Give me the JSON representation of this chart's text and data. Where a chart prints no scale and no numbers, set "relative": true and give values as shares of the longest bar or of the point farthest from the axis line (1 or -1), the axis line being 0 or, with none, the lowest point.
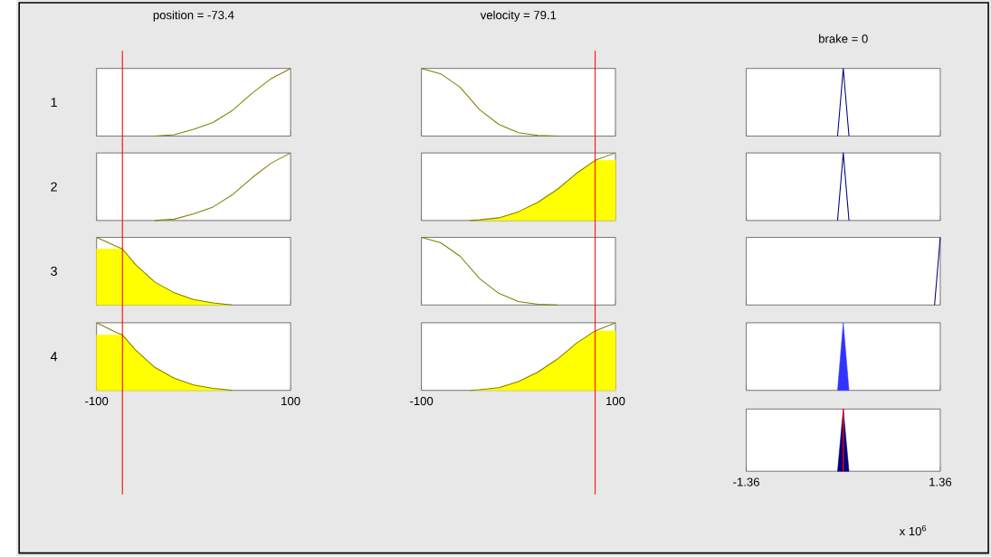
{
  "chart_data": [
    {
      "type": "line",
      "title": "position = -73.4",
      "ylabel": "1",
      "relative": true,
      "xlim": [
        -100,
        100
      ],
      "xticks": [
        -100,
        100
      ],
      "tick_labels": false,
      "ref_lines": [
        {
          "axis": "x",
          "value": -73.4,
          "color": "#ff0000"
        }
      ],
      "series": [
        {
          "color": "#808000",
          "x": [
            -40,
            -20,
            0,
            20,
            40,
            60,
            80,
            100
          ],
          "values": [
            0,
            0.02,
            0.1,
            0.2,
            0.38,
            0.63,
            0.85,
            1
          ]
        }
      ]
    },
    {
      "type": "line",
      "title": "velocity = 79.1",
      "relative": true,
      "xlim": [
        -100,
        100
      ],
      "xticks": [
        -100,
        100
      ],
      "tick_labels": false,
      "ref_lines": [
        {
          "axis": "x",
          "value": 79.1,
          "color": "#ff0000"
        }
      ],
      "series": [
        {
          "color": "#808000",
          "x": [
            -100,
            -80,
            -60,
            -40,
            -20,
            0,
            20,
            40
          ],
          "values": [
            1,
            0.92,
            0.72,
            0.39,
            0.17,
            0.05,
            0.01,
            0
          ]
        }
      ]
    },
    {
      "type": "line",
      "title": "brake = 0",
      "relative": true,
      "xlim": [
        -1.36,
        1.36
      ],
      "xticks": [
        -1.36,
        1.36
      ],
      "tick_labels": false,
      "series": [
        {
          "color": "#000080",
          "x": [
            -0.08,
            0,
            0.08
          ],
          "values": [
            0,
            1,
            0
          ]
        }
      ]
    },
    {
      "type": "line",
      "ylabel": "2",
      "relative": true,
      "xlim": [
        -100,
        100
      ],
      "xticks": [
        -100,
        100
      ],
      "tick_labels": false,
      "ref_lines": [
        {
          "axis": "x",
          "value": -73.4,
          "color": "#ff0000"
        }
      ],
      "series": [
        {
          "color": "#808000",
          "x": [
            -40,
            -20,
            0,
            20,
            40,
            60,
            80,
            100
          ],
          "values": [
            0,
            0.02,
            0.1,
            0.2,
            0.38,
            0.63,
            0.85,
            1
          ]
        }
      ]
    },
    {
      "type": "line",
      "relative": true,
      "xlim": [
        -100,
        100
      ],
      "xticks": [
        -100,
        100
      ],
      "tick_labels": false,
      "ref_lines": [
        {
          "axis": "x",
          "value": 79.1,
          "color": "#ff0000"
        }
      ],
      "series": [
        {
          "type": "area",
          "color": "#ffff00",
          "x": [
            -50,
            -40,
            -20,
            0,
            20,
            40,
            60,
            79.1,
            100
          ],
          "values": [
            0,
            0.01,
            0.04,
            0.13,
            0.27,
            0.46,
            0.7,
            0.89,
            0.89
          ]
        },
        {
          "color": "#808000",
          "x": [
            -50,
            -40,
            -20,
            0,
            20,
            40,
            60,
            79.1,
            100
          ],
          "values": [
            0,
            0.01,
            0.04,
            0.13,
            0.27,
            0.46,
            0.7,
            0.89,
            1
          ]
        }
      ]
    },
    {
      "type": "line",
      "relative": true,
      "xlim": [
        -1.36,
        1.36
      ],
      "xticks": [
        -1.36,
        1.36
      ],
      "tick_labels": false,
      "series": [
        {
          "color": "#000080",
          "x": [
            -0.08,
            0,
            0.08
          ],
          "values": [
            0,
            1,
            0
          ]
        }
      ]
    },
    {
      "type": "line",
      "ylabel": "3",
      "relative": true,
      "xlim": [
        -100,
        100
      ],
      "xticks": [
        -100,
        100
      ],
      "tick_labels": false,
      "ref_lines": [
        {
          "axis": "x",
          "value": -73.4,
          "color": "#ff0000"
        }
      ],
      "series": [
        {
          "type": "area",
          "color": "#ffff00",
          "x": [
            -100,
            -80,
            -73.4,
            -60,
            -40,
            -20,
            0,
            20,
            40
          ],
          "values": [
            0.83,
            0.83,
            0.83,
            0.6,
            0.34,
            0.18,
            0.08,
            0.03,
            0
          ]
        },
        {
          "color": "#808000",
          "x": [
            -100,
            -80,
            -73.4,
            -60,
            -40,
            -20,
            0,
            20,
            40
          ],
          "values": [
            1,
            0.87,
            0.83,
            0.6,
            0.34,
            0.18,
            0.08,
            0.03,
            0
          ]
        }
      ]
    },
    {
      "type": "line",
      "relative": true,
      "xlim": [
        -100,
        100
      ],
      "xticks": [
        -100,
        100
      ],
      "tick_labels": false,
      "ref_lines": [
        {
          "axis": "x",
          "value": 79.1,
          "color": "#ff0000"
        }
      ],
      "series": [
        {
          "color": "#808000",
          "x": [
            -100,
            -80,
            -60,
            -40,
            -20,
            0,
            20,
            40
          ],
          "values": [
            1,
            0.92,
            0.72,
            0.39,
            0.17,
            0.05,
            0.01,
            0
          ]
        }
      ]
    },
    {
      "type": "line",
      "relative": true,
      "xlim": [
        -1.36,
        1.36
      ],
      "xticks": [
        -1.36,
        1.36
      ],
      "tick_labels": false,
      "series": [
        {
          "color": "#000080",
          "x": [
            1.28,
            1.36
          ],
          "values": [
            0,
            1
          ]
        }
      ]
    },
    {
      "type": "line",
      "ylabel": "4",
      "relative": true,
      "xlim": [
        -100,
        100
      ],
      "xticks": [
        -100,
        100
      ],
      "tick_labels": "x",
      "ref_lines": [
        {
          "axis": "x",
          "value": -73.4,
          "color": "#ff0000"
        }
      ],
      "series": [
        {
          "type": "area",
          "color": "#ffff00",
          "x": [
            -100,
            -80,
            -73.4,
            -60,
            -40,
            -20,
            0,
            20,
            40
          ],
          "values": [
            0.82,
            0.82,
            0.82,
            0.6,
            0.34,
            0.18,
            0.08,
            0.03,
            0
          ]
        },
        {
          "color": "#808000",
          "x": [
            -100,
            -80,
            -73.4,
            -60,
            -40,
            -20,
            0,
            20,
            40
          ],
          "values": [
            1,
            0.86,
            0.82,
            0.6,
            0.34,
            0.18,
            0.08,
            0.03,
            0
          ]
        }
      ]
    },
    {
      "type": "line",
      "relative": true,
      "xlim": [
        -100,
        100
      ],
      "xticks": [
        -100,
        100
      ],
      "tick_labels": "x",
      "ref_lines": [
        {
          "axis": "x",
          "value": 79.1,
          "color": "#ff0000"
        }
      ],
      "series": [
        {
          "type": "area",
          "color": "#ffff00",
          "x": [
            -50,
            -40,
            -20,
            0,
            20,
            40,
            60,
            79.1,
            100
          ],
          "values": [
            0,
            0.01,
            0.04,
            0.13,
            0.27,
            0.46,
            0.7,
            0.88,
            0.88
          ]
        },
        {
          "color": "#808000",
          "x": [
            -50,
            -40,
            -20,
            0,
            20,
            40,
            60,
            79.1,
            100
          ],
          "values": [
            0,
            0.01,
            0.04,
            0.13,
            0.27,
            0.46,
            0.7,
            0.88,
            1
          ]
        }
      ]
    },
    {
      "type": "area",
      "relative": true,
      "xlim": [
        -1.36,
        1.36
      ],
      "xticks": [
        -1.36,
        1.36
      ],
      "tick_labels": false,
      "series": [
        {
          "color": "#3333ff",
          "x": [
            -0.08,
            0,
            0.08
          ],
          "values": [
            0,
            1,
            0
          ]
        }
      ]
    },
    {
      "type": "area",
      "relative": true,
      "xlim": [
        -1.36,
        1.36
      ],
      "xticks": [
        -1.36,
        1.36
      ],
      "tick_labels": "x",
      "annotations": [
        "x 10$^{6}$"
      ],
      "ref_lines": [
        {
          "axis": "x",
          "value": 0,
          "color": "#ff0000"
        }
      ],
      "series": [
        {
          "color": "#000080",
          "x": [
            -0.08,
            0,
            0.08
          ],
          "values": [
            0,
            1,
            0
          ]
        }
      ]
    }
  ]
}
